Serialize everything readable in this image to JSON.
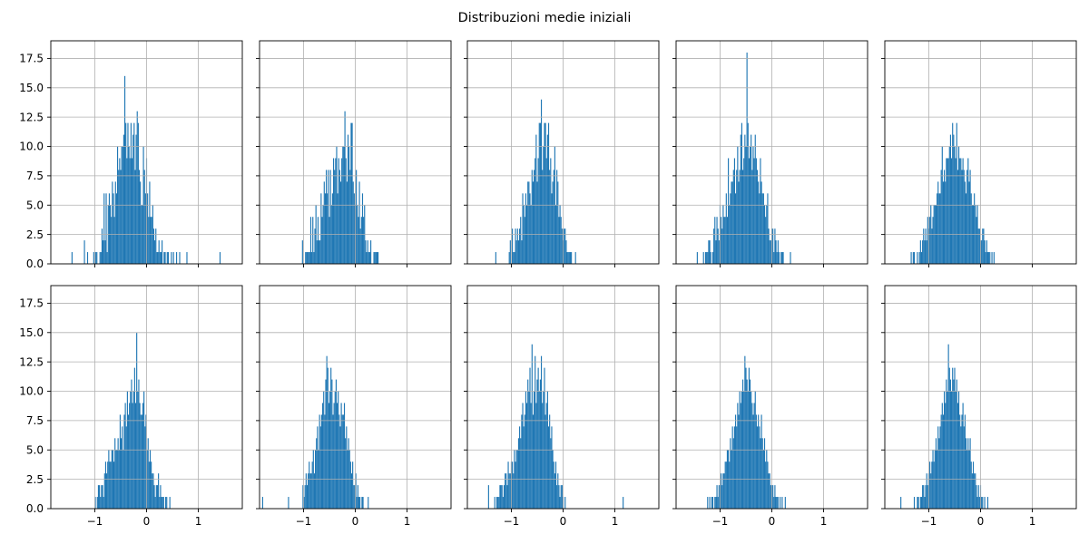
{
  "figure": {
    "title": "Distribuzioni medie iniziali"
  },
  "style": {
    "bar_color": "#1f77b4",
    "grid_color": "#b0b0b0",
    "background": "#ffffff"
  },
  "chart_data": {
    "type": "histogram-grid",
    "rows": 2,
    "cols": 5,
    "sharex": true,
    "sharey": true,
    "xlim": [
      -1.85,
      1.85
    ],
    "ylim": [
      0,
      19
    ],
    "xticks": [
      -1,
      0,
      1
    ],
    "xtick_labels": [
      "−1",
      "0",
      "1"
    ],
    "yticks": [
      0,
      2.5,
      5,
      7.5,
      10,
      12.5,
      15,
      17.5
    ],
    "ytick_labels": [
      "0.0",
      "2.5",
      "5.0",
      "7.5",
      "10.0",
      "12.5",
      "15.0",
      "17.5"
    ],
    "grid": true,
    "bin_width": 0.02,
    "panels": [
      {
        "bin_start": -1.45,
        "counts": [
          1,
          0,
          0,
          0,
          0,
          0,
          0,
          0,
          0,
          0,
          0,
          0,
          2,
          0,
          0,
          1,
          0,
          0,
          0,
          0,
          0,
          1,
          0,
          1,
          1,
          0,
          0,
          1,
          1,
          3,
          2,
          6,
          2,
          6,
          1,
          5,
          6,
          5,
          4,
          7,
          6,
          4,
          7,
          6,
          10,
          8,
          9,
          8,
          10,
          10,
          11,
          16,
          12,
          9,
          12,
          10,
          9,
          12,
          9,
          11,
          12,
          8,
          11,
          13,
          12,
          8,
          7,
          5,
          5,
          10,
          8,
          6,
          9,
          6,
          4,
          7,
          4,
          4,
          5,
          3,
          2,
          3,
          1,
          1,
          2,
          1,
          1,
          2,
          0,
          1,
          1,
          0,
          1,
          1,
          0,
          0,
          1,
          0,
          1,
          0,
          0,
          1,
          0,
          0,
          1,
          0,
          0,
          0,
          0,
          0,
          0,
          1,
          0,
          0,
          0,
          0,
          0,
          0,
          0,
          0,
          0,
          0,
          0,
          0,
          0,
          0,
          0,
          0,
          0,
          0,
          0,
          0,
          0,
          0,
          0,
          0,
          0,
          0,
          0,
          0,
          0,
          0,
          0,
          1
        ]
      },
      {
        "bin_start": -1.55,
        "counts": [
          0,
          0,
          0,
          0,
          0,
          0,
          0,
          0,
          0,
          0,
          0,
          0,
          0,
          0,
          0,
          0,
          0,
          0,
          0,
          0,
          0,
          0,
          0,
          0,
          0,
          0,
          2,
          0,
          0,
          1,
          1,
          1,
          1,
          1,
          4,
          1,
          4,
          1,
          3,
          5,
          2,
          4,
          2,
          2,
          6,
          4,
          5,
          7,
          6,
          8,
          6,
          8,
          4,
          8,
          5,
          6,
          9,
          8,
          9,
          10,
          6,
          9,
          8,
          7,
          9,
          10,
          10,
          13,
          9,
          7,
          11,
          10,
          8,
          12,
          12,
          7,
          6,
          5,
          8,
          5,
          4,
          7,
          3,
          4,
          6,
          4,
          5,
          2,
          1,
          2,
          1,
          1,
          2,
          0,
          0,
          1,
          1,
          1,
          1,
          1,
          0,
          0,
          0,
          0,
          0,
          0,
          0,
          0,
          0,
          0,
          0,
          0,
          0,
          0,
          0,
          0,
          0,
          0,
          0,
          0,
          0,
          0,
          0,
          0,
          0,
          0
        ]
      },
      {
        "bin_start": -1.55,
        "counts": [
          0,
          0,
          0,
          0,
          0,
          0,
          0,
          0,
          0,
          0,
          0,
          0,
          1,
          0,
          0,
          0,
          0,
          0,
          0,
          0,
          0,
          0,
          0,
          0,
          0,
          1,
          2,
          0,
          3,
          1,
          1,
          3,
          2,
          3,
          2,
          3,
          4,
          2,
          6,
          5,
          4,
          6,
          5,
          7,
          7,
          6,
          5,
          8,
          7,
          8,
          9,
          11,
          7,
          9,
          12,
          12,
          14,
          8,
          10,
          12,
          12,
          9,
          11,
          12,
          8,
          9,
          6,
          7,
          8,
          10,
          5,
          8,
          7,
          4,
          5,
          4,
          3,
          2,
          3,
          3,
          2,
          1,
          1,
          1,
          1,
          1,
          0,
          0,
          0,
          1,
          0,
          0,
          0,
          0,
          0,
          0,
          0,
          0,
          0,
          0,
          0,
          0,
          0,
          0,
          0,
          0,
          0,
          0,
          0,
          0,
          0,
          0,
          0,
          0,
          0,
          0,
          0,
          0,
          0,
          0,
          0,
          0,
          0,
          0,
          0,
          0
        ]
      },
      {
        "bin_start": -1.45,
        "counts": [
          1,
          0,
          0,
          0,
          0,
          0,
          1,
          0,
          1,
          1,
          1,
          2,
          2,
          1,
          0,
          1,
          3,
          4,
          2,
          4,
          3,
          2,
          5,
          4,
          3,
          5,
          4,
          4,
          6,
          4,
          9,
          5,
          6,
          7,
          7,
          8,
          9,
          6,
          8,
          10,
          7,
          8,
          11,
          12,
          8,
          9,
          11,
          10,
          18,
          12,
          9,
          10,
          11,
          8,
          10,
          9,
          11,
          9,
          8,
          7,
          6,
          9,
          7,
          6,
          6,
          5,
          4,
          5,
          6,
          3,
          2,
          2,
          3,
          3,
          1,
          3,
          2,
          1,
          2,
          1,
          0,
          1,
          1,
          1,
          0,
          0,
          0,
          0,
          0,
          0,
          1,
          0,
          0,
          0,
          0,
          0,
          0,
          0,
          0,
          0,
          0,
          0,
          0,
          0,
          0,
          0,
          0,
          0,
          0,
          0,
          0,
          0,
          0,
          0,
          0,
          0,
          0,
          0,
          0,
          0,
          0,
          0,
          0,
          0,
          0,
          0,
          0,
          0
        ]
      },
      {
        "bin_start": -1.35,
        "counts": [
          1,
          0,
          1,
          1,
          0,
          0,
          1,
          0,
          1,
          2,
          1,
          2,
          3,
          2,
          3,
          2,
          4,
          3,
          4,
          5,
          3,
          4,
          5,
          5,
          5,
          6,
          7,
          6,
          6,
          8,
          10,
          7,
          8,
          7,
          9,
          9,
          9,
          10,
          11,
          9,
          12,
          11,
          10,
          9,
          12,
          8,
          10,
          9,
          9,
          8,
          9,
          8,
          7,
          6,
          8,
          9,
          7,
          8,
          6,
          5,
          5,
          6,
          5,
          4,
          5,
          3,
          3,
          2,
          2,
          3,
          3,
          2,
          1,
          2,
          1,
          1,
          1,
          0,
          1,
          0,
          1,
          0,
          0,
          0,
          0,
          0,
          0,
          0,
          0,
          0,
          0,
          0,
          0,
          0,
          0,
          0,
          0,
          0,
          0,
          0,
          0,
          0,
          0,
          0,
          0,
          0,
          0,
          0,
          0,
          0,
          0,
          0,
          0,
          0,
          0,
          0,
          0,
          0,
          0,
          0,
          0,
          0,
          0,
          0,
          0,
          0,
          0
        ]
      },
      {
        "bin_start": -1.0,
        "counts": [
          1,
          0,
          1,
          2,
          2,
          1,
          2,
          2,
          1,
          3,
          4,
          3,
          4,
          5,
          4,
          4,
          5,
          5,
          4,
          6,
          5,
          5,
          6,
          5,
          8,
          6,
          7,
          5,
          8,
          9,
          7,
          10,
          8,
          9,
          10,
          11,
          9,
          10,
          12,
          9,
          15,
          10,
          11,
          9,
          8,
          8,
          9,
          10,
          7,
          8,
          5,
          6,
          4,
          5,
          4,
          3,
          3,
          2,
          1,
          2,
          2,
          3,
          1,
          2,
          1,
          1,
          1,
          0,
          1,
          1,
          0,
          0,
          1,
          0,
          0,
          0,
          0,
          0,
          0,
          0,
          0,
          0,
          0,
          0,
          0,
          0,
          0,
          0,
          0,
          0,
          0,
          0,
          0,
          0,
          0,
          0,
          0,
          0,
          0,
          0,
          0,
          0,
          0,
          0,
          0,
          0,
          0,
          0,
          0,
          0,
          0,
          0,
          0,
          0
        ]
      },
      {
        "bin_start": -1.8,
        "counts": [
          1,
          0,
          0,
          0,
          0,
          0,
          0,
          0,
          0,
          0,
          0,
          0,
          0,
          0,
          0,
          0,
          0,
          0,
          0,
          0,
          0,
          0,
          0,
          0,
          0,
          1,
          0,
          0,
          0,
          0,
          0,
          0,
          0,
          0,
          0,
          0,
          0,
          0,
          0,
          2,
          1,
          2,
          3,
          2,
          3,
          4,
          3,
          3,
          4,
          5,
          3,
          5,
          6,
          7,
          5,
          8,
          7,
          8,
          9,
          10,
          8,
          11,
          13,
          12,
          9,
          10,
          12,
          11,
          8,
          9,
          10,
          11,
          9,
          10,
          8,
          7,
          9,
          8,
          8,
          9,
          6,
          7,
          5,
          6,
          5,
          4,
          3,
          4,
          2,
          2,
          3,
          1,
          2,
          1,
          1,
          0,
          1,
          1,
          0,
          0,
          0,
          0,
          1,
          0,
          0,
          0,
          0,
          0,
          0,
          0,
          0,
          0,
          0,
          0,
          0,
          0,
          0,
          0,
          0,
          0,
          0,
          0,
          0,
          0,
          0,
          0,
          0,
          0,
          0,
          0
        ]
      },
      {
        "bin_start": -1.45,
        "counts": [
          2,
          0,
          0,
          0,
          0,
          0,
          1,
          0,
          1,
          1,
          1,
          2,
          2,
          2,
          1,
          2,
          3,
          3,
          2,
          4,
          3,
          3,
          4,
          4,
          3,
          5,
          4,
          5,
          5,
          6,
          7,
          6,
          8,
          9,
          7,
          8,
          10,
          9,
          11,
          10,
          12,
          9,
          14,
          8,
          10,
          13,
          9,
          11,
          12,
          10,
          11,
          13,
          9,
          10,
          12,
          8,
          9,
          10,
          7,
          8,
          6,
          7,
          5,
          4,
          3,
          4,
          2,
          3,
          2,
          1,
          2,
          2,
          1,
          0,
          1,
          0,
          0,
          0,
          0,
          0,
          0,
          0,
          0,
          0,
          0,
          0,
          0,
          0,
          0,
          0,
          0,
          0,
          0,
          0,
          0,
          0,
          0,
          0,
          0,
          0,
          0,
          0,
          0,
          0,
          0,
          0,
          0,
          0,
          0,
          0,
          0,
          0,
          0,
          0,
          0,
          0,
          0,
          0,
          0,
          0,
          0,
          0,
          0,
          0,
          0,
          0,
          0,
          0,
          0,
          0,
          1
        ]
      },
      {
        "bin_start": -1.25,
        "counts": [
          1,
          0,
          1,
          0,
          1,
          1,
          0,
          1,
          1,
          2,
          1,
          2,
          2,
          3,
          2,
          3,
          3,
          4,
          4,
          5,
          5,
          4,
          6,
          5,
          7,
          6,
          7,
          8,
          7,
          9,
          8,
          10,
          9,
          10,
          11,
          10,
          13,
          12,
          11,
          10,
          12,
          11,
          10,
          9,
          8,
          9,
          10,
          8,
          7,
          8,
          7,
          6,
          8,
          6,
          5,
          6,
          4,
          5,
          4,
          3,
          3,
          2,
          2,
          2,
          1,
          2,
          1,
          1,
          1,
          0,
          1,
          0,
          1,
          0,
          0,
          1,
          0,
          0,
          0,
          0,
          0,
          0,
          0,
          0,
          0,
          0,
          0,
          0,
          0,
          0,
          0,
          0,
          0,
          0,
          0,
          0,
          0,
          0,
          0,
          0,
          0,
          0,
          0,
          0,
          0,
          0,
          0,
          0,
          0,
          0,
          0,
          0,
          0,
          0,
          0,
          0,
          0,
          0
        ]
      },
      {
        "bin_start": -1.55,
        "counts": [
          1,
          0,
          0,
          0,
          0,
          0,
          0,
          0,
          0,
          0,
          0,
          0,
          0,
          1,
          0,
          0,
          1,
          1,
          0,
          1,
          1,
          2,
          2,
          1,
          2,
          3,
          2,
          3,
          4,
          3,
          4,
          5,
          4,
          5,
          6,
          5,
          7,
          6,
          7,
          8,
          9,
          8,
          10,
          9,
          11,
          10,
          14,
          12,
          11,
          10,
          12,
          11,
          12,
          10,
          11,
          9,
          10,
          8,
          7,
          8,
          9,
          7,
          8,
          6,
          5,
          6,
          5,
          6,
          4,
          3,
          4,
          3,
          3,
          2,
          1,
          2,
          1,
          2,
          1,
          1,
          0,
          1,
          0,
          0,
          1,
          0,
          0,
          0,
          0,
          0,
          0,
          0,
          0,
          0,
          0,
          0,
          0,
          0,
          0,
          0,
          0,
          0,
          0,
          0,
          0,
          0,
          0,
          0,
          0,
          0,
          0,
          0,
          0,
          0,
          0,
          0,
          0,
          0,
          0,
          0,
          0,
          0,
          0,
          0,
          0
        ]
      }
    ]
  }
}
